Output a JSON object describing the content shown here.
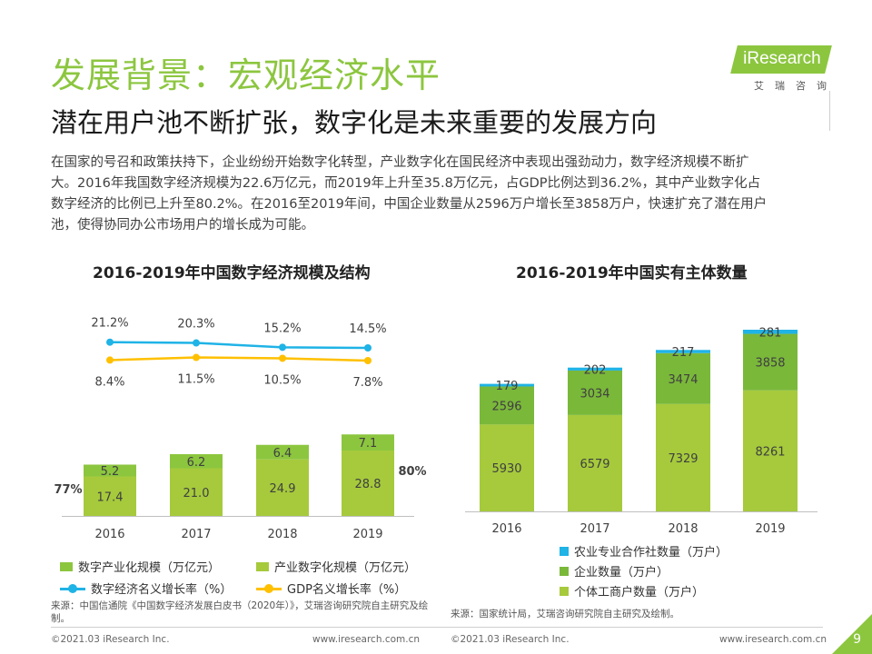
{
  "header": {
    "title": "发展背景：宏观经济水平",
    "subtitle": "潜在用户池不断扩张，数字化是未来重要的发展方向",
    "logo_text": "iResearch",
    "logo_cn": "艾瑞咨询"
  },
  "paragraph": [
    "在国家的号召和政策扶持下，企业纷纷开始数字化转型，产业数字化在国民经济中表现出强劲动力，数字经济规模不断扩",
    "大。2016年我国数字经济规模为22.6万亿元，而2019年上升至35.8万亿元，占GDP比例达到36.2%，其中产业数字化占",
    "数字经济的比例已上升至80.2%。在2016至2019年间，中国企业数量从2596万户增长至3858万户，快速扩充了潜在用户",
    "池，使得协同办公市场用户的增长成为可能。"
  ],
  "colors": {
    "dark_green": "#8cc63f",
    "light_green": "#a6ca3c",
    "cyan": "#1fb3e6",
    "yellow": "#ffc000",
    "green_top": "#7ab83a"
  },
  "chart_data": [
    {
      "type": "bar",
      "title": "2016-2019年中国数字经济规模及结构",
      "categories": [
        "2016",
        "2017",
        "2018",
        "2019"
      ],
      "stacked": true,
      "series": [
        {
          "name": "产业数字化规模（万亿元）",
          "values": [
            17.4,
            21.0,
            24.9,
            28.8
          ]
        },
        {
          "name": "数字产业化规模（万亿元）",
          "values": [
            5.2,
            6.2,
            6.4,
            7.1
          ]
        }
      ],
      "line_series": [
        {
          "name": "数字经济名义增长率（%）",
          "labels": [
            "21.2%",
            "20.3%",
            "15.2%",
            "14.5%"
          ],
          "values": [
            21.2,
            20.3,
            15.2,
            14.5
          ]
        },
        {
          "name": "GDP名义增长率（%）",
          "labels": [
            "8.4%",
            "11.5%",
            "10.5%",
            "7.8%"
          ],
          "values": [
            8.4,
            11.5,
            10.5,
            7.8
          ]
        }
      ],
      "annotations": {
        "left": "77%",
        "right": "80%"
      },
      "source": "来源：中国信通院《中国数字经济发展白皮书（2020年）》，艾瑞咨询研究院自主研究及绘制。"
    },
    {
      "type": "bar",
      "title": "2016-2019年中国实有主体数量",
      "categories": [
        "2016",
        "2017",
        "2018",
        "2019"
      ],
      "stacked": true,
      "series": [
        {
          "name": "个体工商户数量（万户）",
          "values": [
            5930,
            6579,
            7329,
            8261
          ]
        },
        {
          "name": "企业数量（万户）",
          "values": [
            2596,
            3034,
            3474,
            3858
          ]
        },
        {
          "name": "农业专业合作社数量（万户）",
          "values": [
            179,
            202,
            217,
            281
          ]
        }
      ],
      "source": "来源：国家统计局，艾瑞咨询研究院自主研究及绘制。"
    }
  ],
  "footer": {
    "left_copyright": "©2021.03 iResearch Inc.",
    "left_url": "www.iresearch.com.cn",
    "right_copyright": "©2021.03 iResearch Inc.",
    "right_url": "www.iresearch.com.cn",
    "page": "9"
  }
}
